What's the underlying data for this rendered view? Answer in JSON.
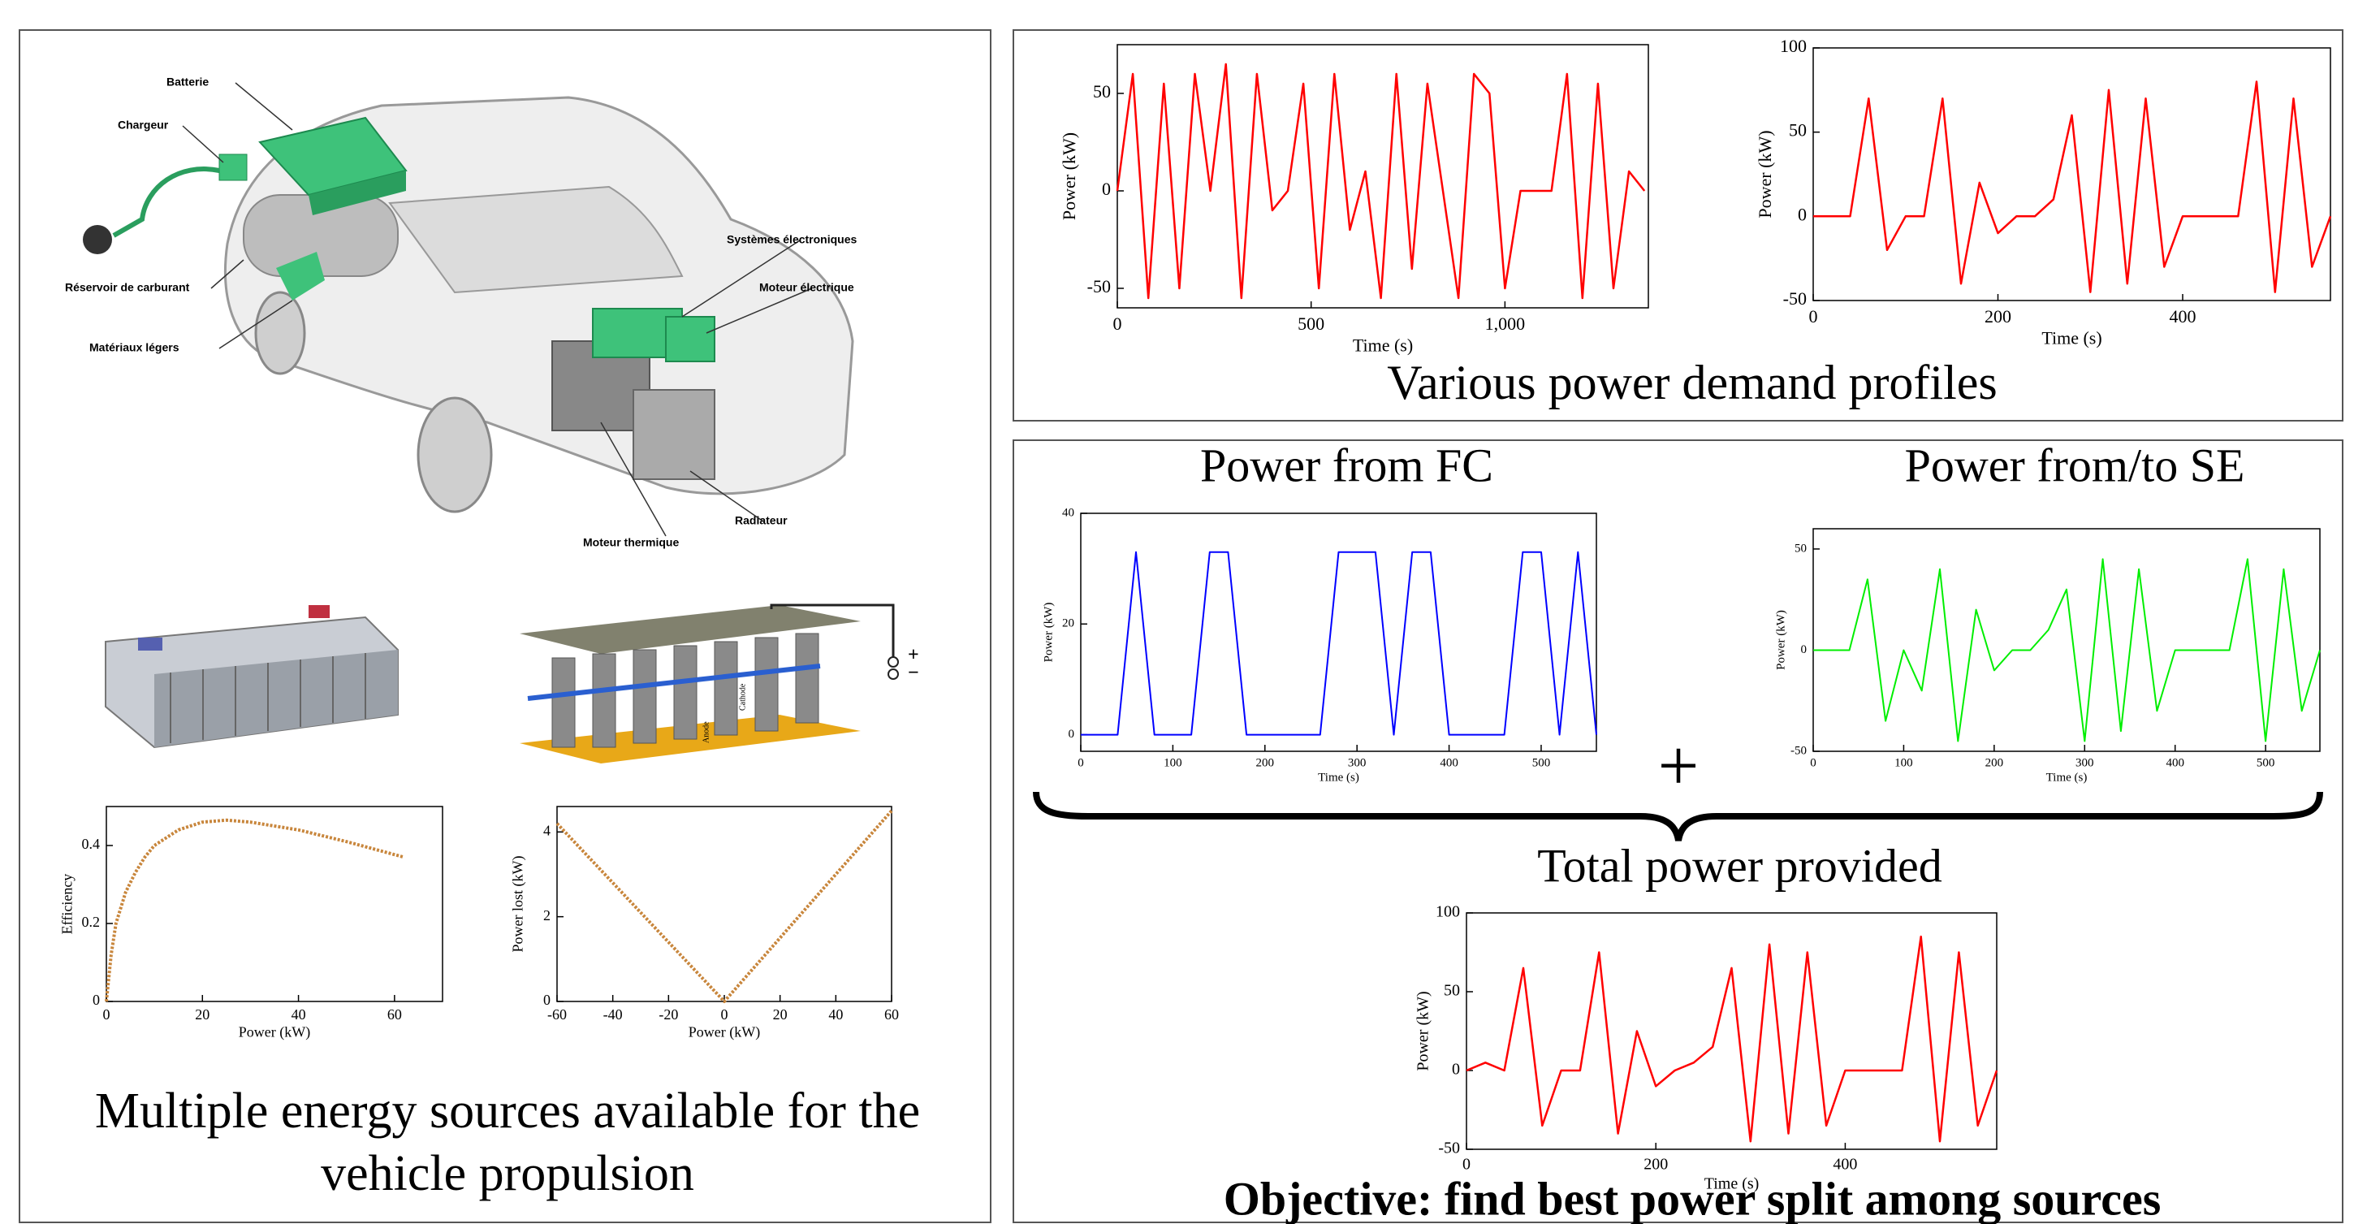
{
  "illustration": {
    "car_labels": [
      "Batterie",
      "Chargeur",
      "Réservoir de carburant",
      "Matériaux légers",
      "Systèmes électroniques",
      "Moteur électrique",
      "Radiateur",
      "Moteur thermique"
    ],
    "supercap_labels": [
      "+",
      "−",
      "Cathode",
      "Anode"
    ]
  },
  "left_caption": [
    "Multiple energy sources available for the",
    "vehicle propulsion"
  ],
  "top_right_caption": "Various power demand profiles",
  "plus_sign": "+",
  "objective": "Objective: find best power split among sources",
  "chart_data": [
    {
      "type": "line",
      "xlabel": "Power (kW)",
      "ylabel": "Efficiency",
      "x": [
        0,
        1,
        2,
        4,
        6,
        8,
        10,
        15,
        20,
        25,
        30,
        40,
        50,
        62
      ],
      "series": [
        {
          "color": "#c8863c",
          "values": [
            0,
            0.12,
            0.2,
            0.28,
            0.33,
            0.37,
            0.4,
            0.44,
            0.46,
            0.465,
            0.46,
            0.44,
            0.41,
            0.37
          ]
        }
      ],
      "xlim": [
        0,
        70
      ],
      "xticks": [
        0,
        20,
        40,
        60
      ],
      "ylim": [
        0,
        0.5
      ],
      "yticks": [
        0,
        0.2,
        0.4
      ]
    },
    {
      "type": "line",
      "xlabel": "Power (kW)",
      "ylabel": "Power lost (kW)",
      "x": [
        -60,
        -40,
        -20,
        0,
        20,
        40,
        60
      ],
      "series": [
        {
          "color": "#c8863c",
          "values": [
            4.2,
            2.8,
            1.4,
            0,
            1.5,
            3,
            4.5
          ]
        }
      ],
      "xlim": [
        -60,
        60
      ],
      "xticks": [
        -60,
        -40,
        -20,
        0,
        20,
        40,
        60
      ],
      "ylim": [
        0,
        4.6
      ],
      "yticks": [
        0,
        2,
        4
      ]
    },
    {
      "type": "line",
      "xlabel": "Time (s)",
      "ylabel": "Power (kW)",
      "x": [
        0,
        40,
        80,
        120,
        160,
        200,
        240,
        280,
        320,
        360,
        400,
        440,
        480,
        520,
        560,
        600,
        640,
        680,
        720,
        760,
        800,
        840,
        880,
        920,
        960,
        1000,
        1040,
        1080,
        1120,
        1160,
        1200,
        1240,
        1280,
        1320,
        1360
      ],
      "series": [
        {
          "color": "#ff0000",
          "values": [
            0,
            60,
            -55,
            55,
            -50,
            60,
            0,
            65,
            -55,
            60,
            -10,
            0,
            55,
            -50,
            60,
            -20,
            10,
            -55,
            60,
            -40,
            55,
            0,
            -55,
            60,
            50,
            -50,
            0,
            0,
            0,
            60,
            -55,
            55,
            -50,
            10,
            0
          ]
        }
      ],
      "xlim": [
        0,
        1370
      ],
      "xticks": [
        0,
        500,
        {
          "value": 1000,
          "label": "1,000"
        }
      ],
      "ylim": [
        -60,
        75
      ],
      "yticks": [
        -50,
        0,
        50
      ]
    },
    {
      "type": "line",
      "xlabel": "Time (s)",
      "ylabel": "Power (kW)",
      "x": [
        0,
        20,
        40,
        60,
        80,
        100,
        120,
        140,
        160,
        180,
        200,
        220,
        240,
        260,
        280,
        300,
        320,
        340,
        360,
        380,
        400,
        420,
        440,
        460,
        480,
        500,
        520,
        540,
        560
      ],
      "series": [
        {
          "color": "#ff0000",
          "values": [
            0,
            0,
            0,
            70,
            -20,
            0,
            0,
            70,
            -40,
            20,
            -10,
            0,
            0,
            10,
            60,
            -45,
            75,
            -40,
            70,
            -30,
            0,
            0,
            0,
            0,
            80,
            -45,
            70,
            -30,
            0
          ]
        }
      ],
      "xlim": [
        0,
        560
      ],
      "xticks": [
        0,
        200,
        400
      ],
      "ylim": [
        -50,
        100
      ],
      "yticks": [
        -50,
        0,
        50,
        100
      ]
    },
    {
      "type": "line",
      "title": "Power from FC",
      "xlabel": "Time (s)",
      "ylabel": "Power (kW)",
      "x": [
        0,
        20,
        40,
        60,
        80,
        100,
        120,
        140,
        160,
        180,
        200,
        220,
        240,
        260,
        280,
        300,
        320,
        340,
        360,
        380,
        400,
        420,
        440,
        460,
        480,
        500,
        520,
        540,
        560
      ],
      "series": [
        {
          "color": "#0000ff",
          "values": [
            0,
            0,
            0,
            33,
            0,
            0,
            0,
            33,
            33,
            0,
            0,
            0,
            0,
            0,
            33,
            33,
            33,
            0,
            33,
            33,
            0,
            0,
            0,
            0,
            33,
            33,
            0,
            33,
            0
          ]
        }
      ],
      "xlim": [
        0,
        560
      ],
      "xticks": [
        0,
        100,
        200,
        300,
        400,
        500
      ],
      "ylim": [
        -3,
        40
      ],
      "yticks": [
        0,
        20,
        40
      ]
    },
    {
      "type": "line",
      "title": "Power from/to SE",
      "xlabel": "Time (s)",
      "ylabel": "Power (kW)",
      "x": [
        0,
        20,
        40,
        60,
        80,
        100,
        120,
        140,
        160,
        180,
        200,
        220,
        240,
        260,
        280,
        300,
        320,
        340,
        360,
        380,
        400,
        420,
        440,
        460,
        480,
        500,
        520,
        540,
        560
      ],
      "series": [
        {
          "color": "#00ee00",
          "values": [
            0,
            0,
            0,
            35,
            -35,
            0,
            -20,
            40,
            -45,
            20,
            -10,
            0,
            0,
            10,
            30,
            -45,
            45,
            -40,
            40,
            -30,
            0,
            0,
            0,
            0,
            45,
            -45,
            40,
            -30,
            0
          ]
        }
      ],
      "xlim": [
        0,
        560
      ],
      "xticks": [
        0,
        100,
        200,
        300,
        400,
        500
      ],
      "ylim": [
        -50,
        60
      ],
      "yticks": [
        -50,
        0,
        50
      ]
    },
    {
      "type": "line",
      "title": "Total power provided",
      "xlabel": "Time (s)",
      "ylabel": "Power (kW)",
      "x": [
        0,
        20,
        40,
        60,
        80,
        100,
        120,
        140,
        160,
        180,
        200,
        220,
        240,
        260,
        280,
        300,
        320,
        340,
        360,
        380,
        400,
        420,
        440,
        460,
        480,
        500,
        520,
        540,
        560
      ],
      "series": [
        {
          "color": "#ff0000",
          "values": [
            0,
            5,
            0,
            65,
            -35,
            0,
            0,
            75,
            -40,
            25,
            -10,
            0,
            5,
            15,
            65,
            -45,
            80,
            -40,
            75,
            -35,
            0,
            0,
            0,
            0,
            85,
            -45,
            75,
            -35,
            0
          ]
        }
      ],
      "xlim": [
        0,
        560
      ],
      "xticks": [
        0,
        200,
        400
      ],
      "ylim": [
        -50,
        100
      ],
      "yticks": [
        -50,
        0,
        50,
        100
      ]
    }
  ]
}
